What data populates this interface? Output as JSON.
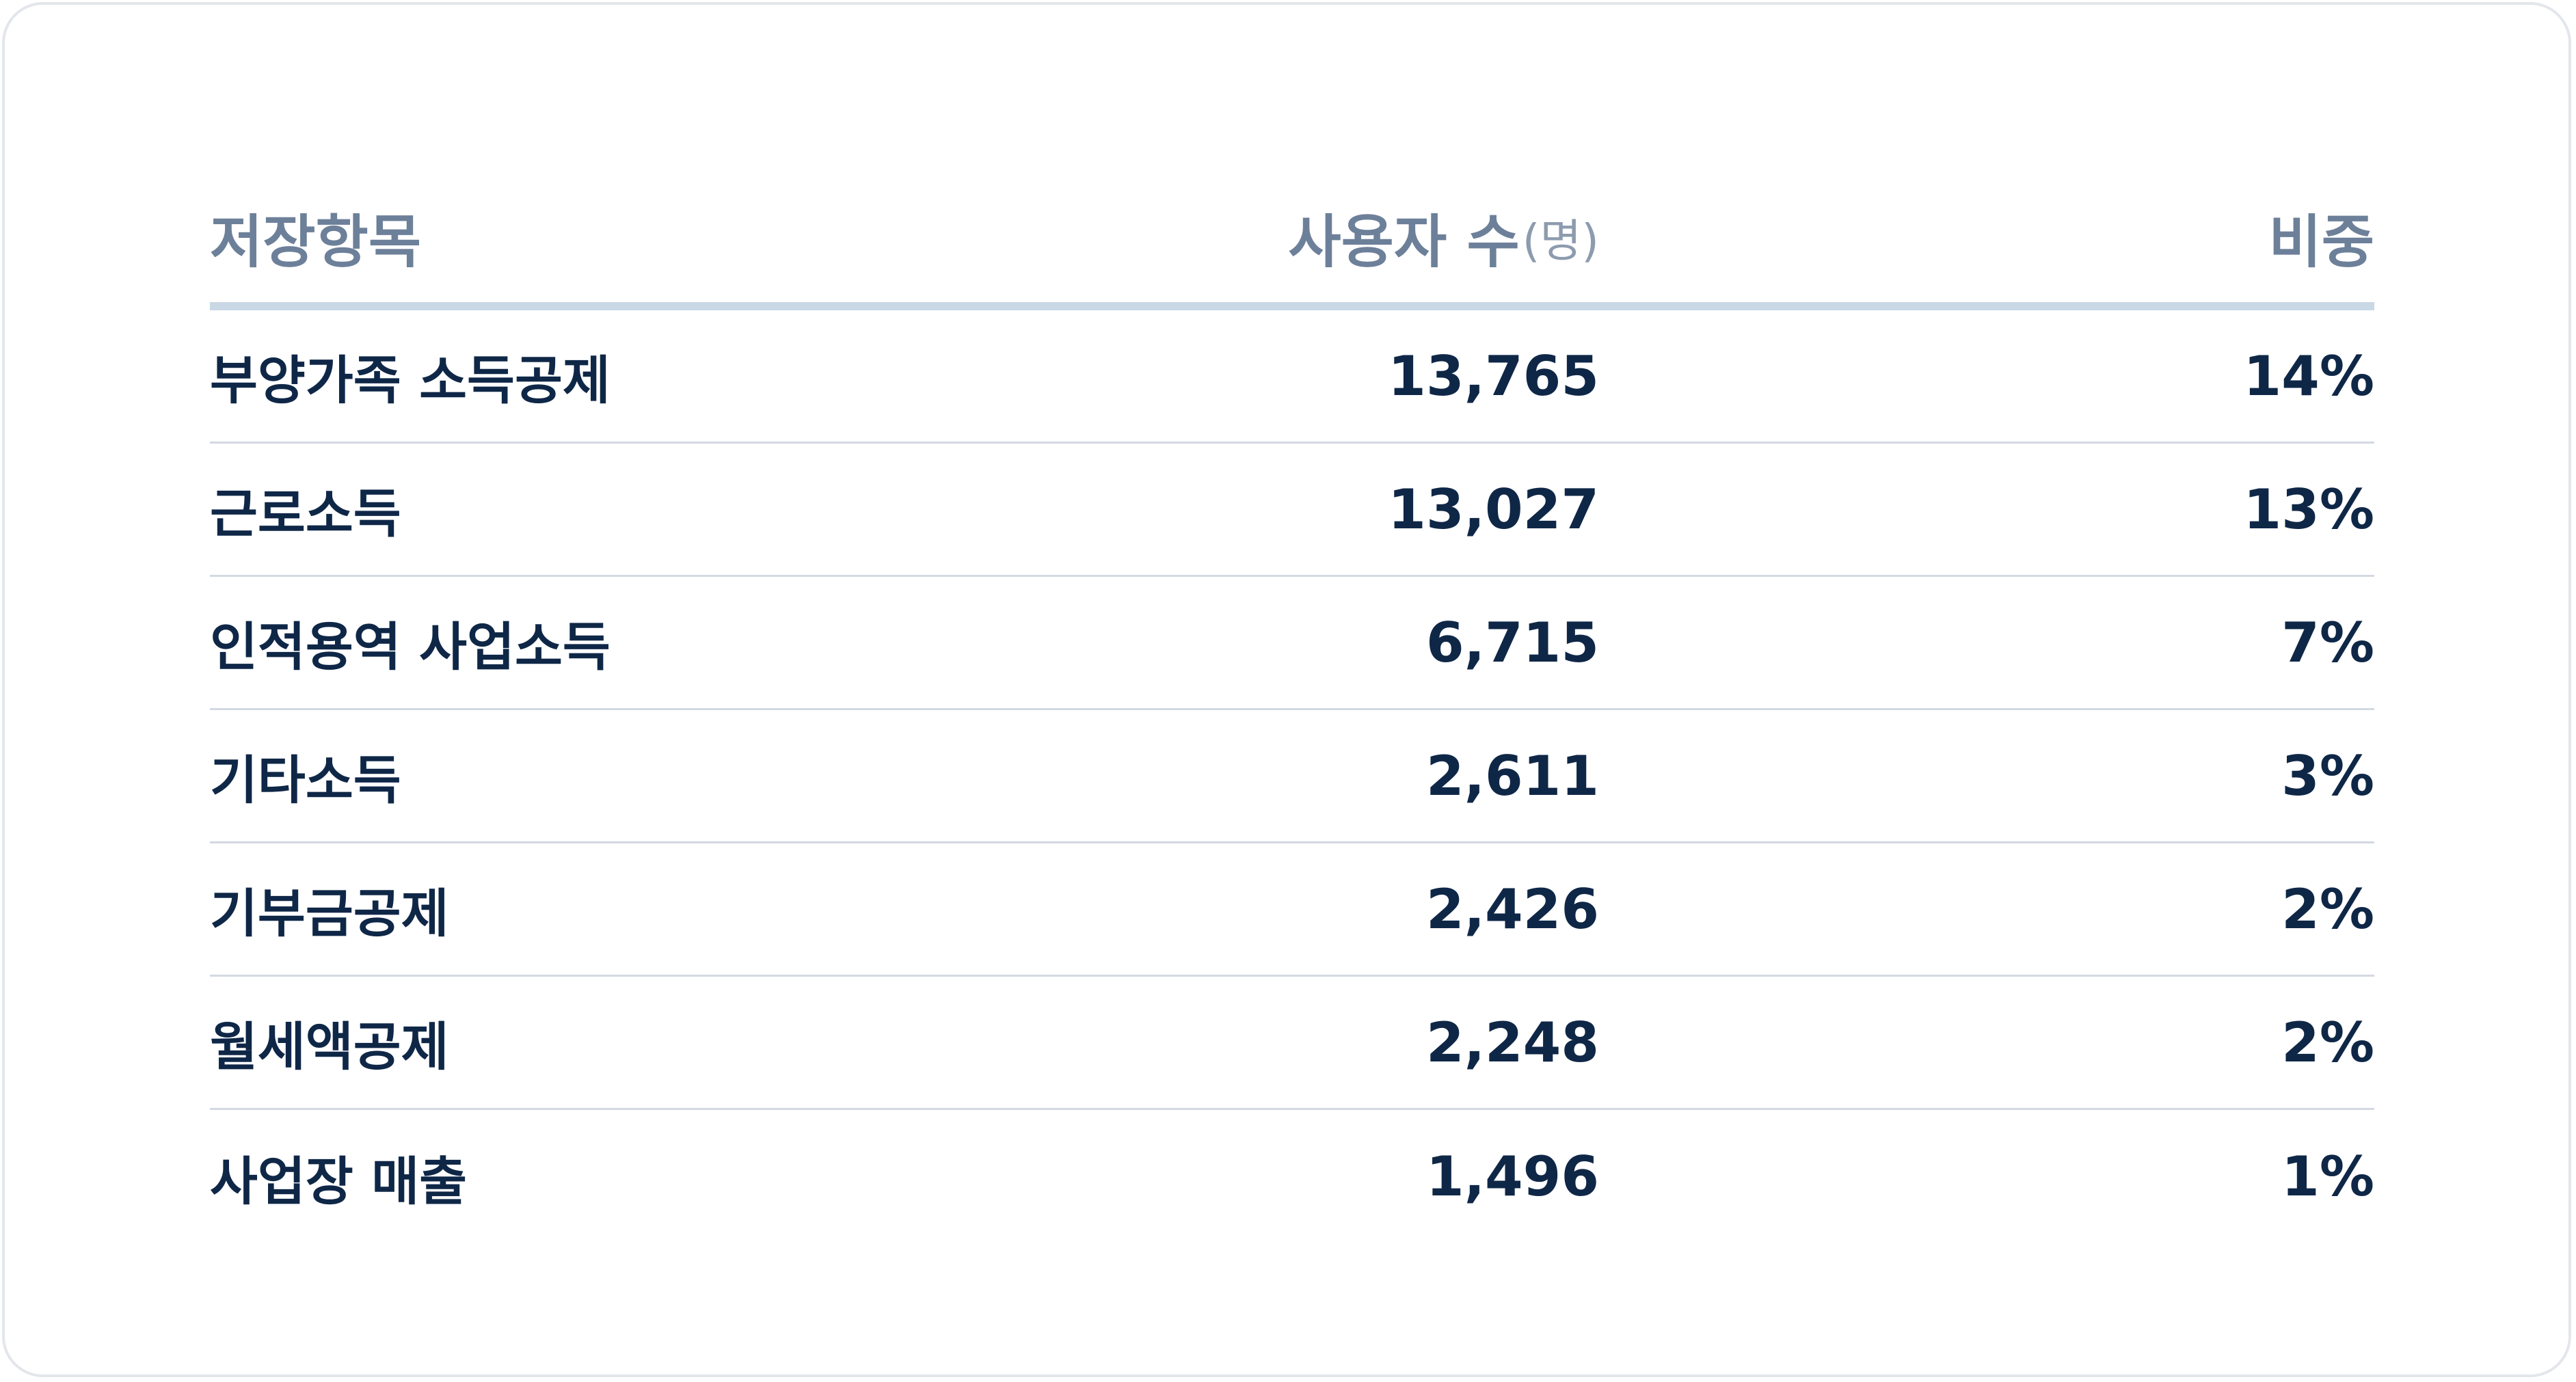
{
  "table": {
    "headers": {
      "item": "저장항목",
      "users": "사용자 수",
      "users_unit": "(명)",
      "ratio": "비중"
    },
    "rows": [
      {
        "item": "부양가족 소득공제",
        "users": "13,765",
        "ratio": "14%"
      },
      {
        "item": "근로소득",
        "users": "13,027",
        "ratio": "13%"
      },
      {
        "item": "인적용역 사업소득",
        "users": "6,715",
        "ratio": "7%"
      },
      {
        "item": "기타소득",
        "users": "2,611",
        "ratio": "3%"
      },
      {
        "item": "기부금공제",
        "users": "2,426",
        "ratio": "2%"
      },
      {
        "item": "월세액공제",
        "users": "2,248",
        "ratio": "2%"
      },
      {
        "item": "사업장 매출",
        "users": "1,496",
        "ratio": "1%"
      }
    ]
  }
}
